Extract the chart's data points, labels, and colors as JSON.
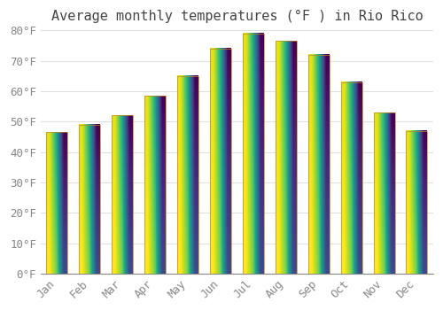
{
  "months": [
    "Jan",
    "Feb",
    "Mar",
    "Apr",
    "May",
    "Jun",
    "Jul",
    "Aug",
    "Sep",
    "Oct",
    "Nov",
    "Dec"
  ],
  "values": [
    46.5,
    49.0,
    52.0,
    58.5,
    65.0,
    74.0,
    79.0,
    76.5,
    72.0,
    63.0,
    53.0,
    47.0
  ],
  "bar_color_top": "#F5A623",
  "bar_color_bottom": "#FFD055",
  "bar_edge_color": "#C8851A",
  "title": "Average monthly temperatures (°F ) in Rio Rico",
  "ylim": [
    0,
    80
  ],
  "yticks": [
    0,
    10,
    20,
    30,
    40,
    50,
    60,
    70,
    80
  ],
  "ytick_labels": [
    "0°F",
    "10°F",
    "20°F",
    "30°F",
    "40°F",
    "50°F",
    "60°F",
    "70°F",
    "80°F"
  ],
  "background_color": "#FFFFFF",
  "grid_color": "#E0E0E0",
  "title_fontsize": 11,
  "tick_fontsize": 9,
  "tick_color": "#888888"
}
